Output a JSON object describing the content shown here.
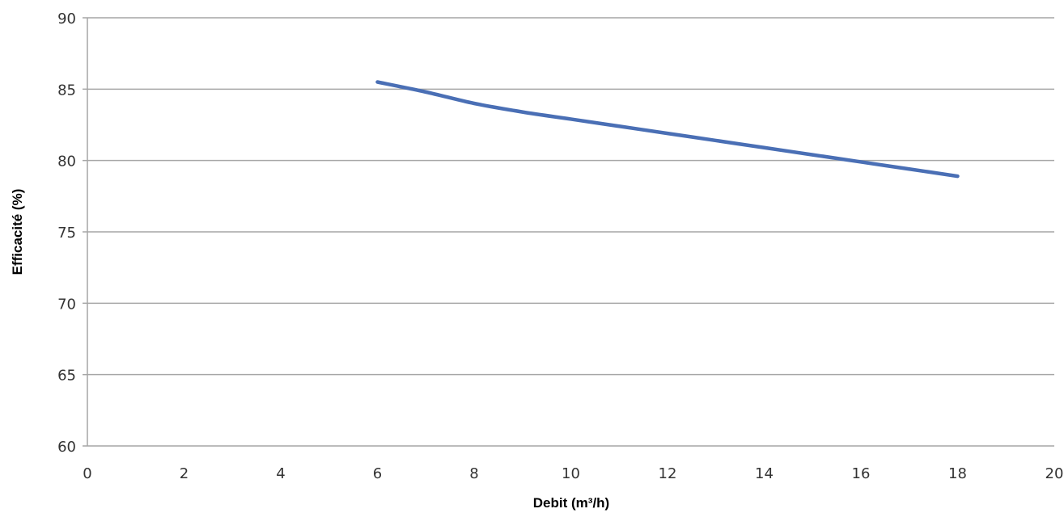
{
  "chart_data": {
    "type": "line",
    "xlabel": "Debit (m³/h)",
    "ylabel": "Efficacité (%)",
    "xlim": [
      0,
      20
    ],
    "ylim": [
      60,
      90
    ],
    "x_ticks": [
      0,
      2,
      4,
      6,
      8,
      10,
      12,
      14,
      16,
      18,
      20
    ],
    "y_ticks": [
      60,
      65,
      70,
      75,
      80,
      85,
      90
    ],
    "grid": "horizontal",
    "legend": "none",
    "series": [
      {
        "color": "#4a6fb5",
        "x": [
          6,
          7,
          8,
          9,
          10,
          11,
          12,
          13,
          14,
          15,
          16,
          17,
          18
        ],
        "y": [
          85.5,
          84.8,
          84.0,
          83.4,
          82.9,
          82.4,
          81.9,
          81.4,
          80.9,
          80.4,
          79.9,
          79.4,
          78.9
        ]
      }
    ]
  }
}
